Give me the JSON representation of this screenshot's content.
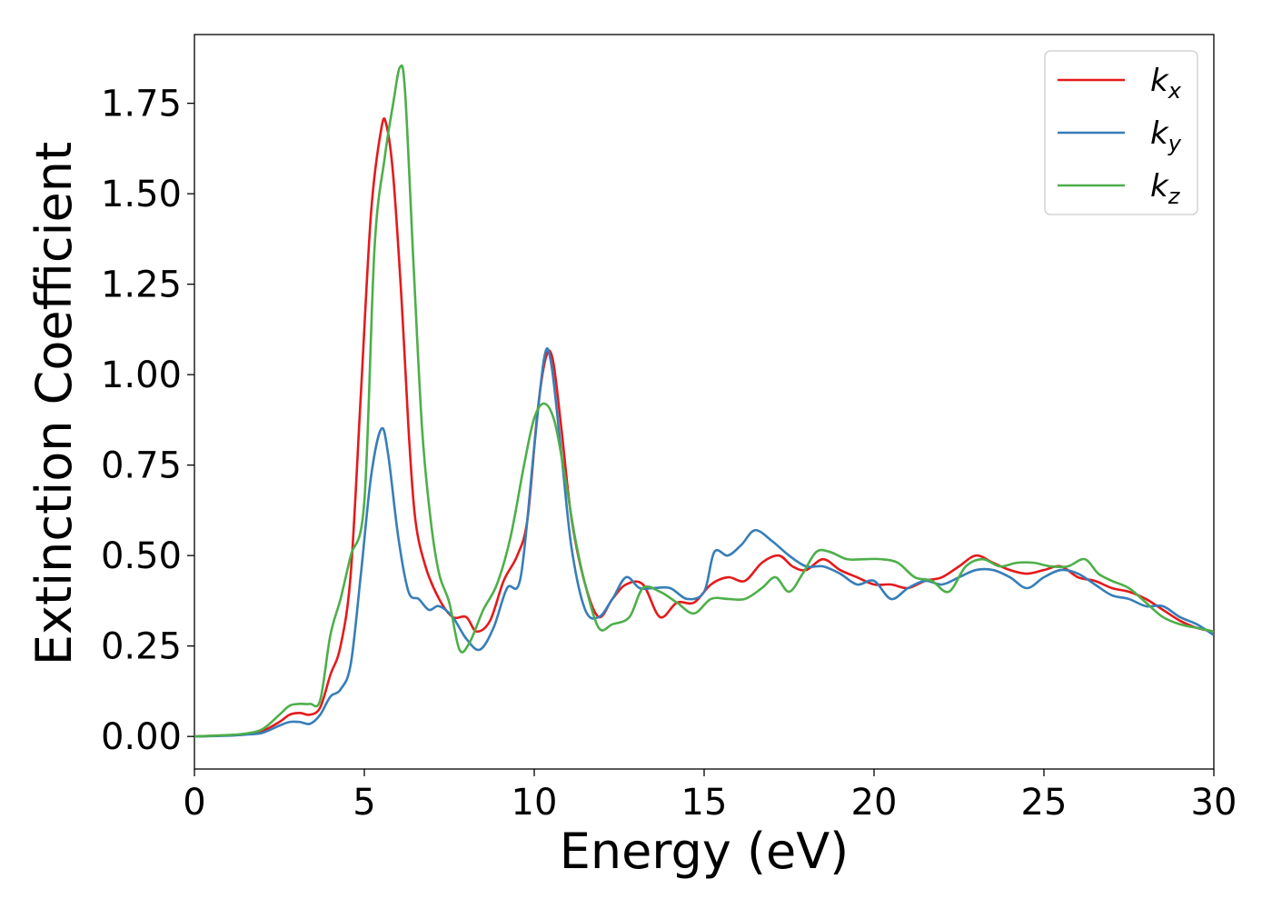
{
  "chart_data": {
    "type": "line",
    "xlabel": "Energy (eV)",
    "ylabel": "Extinction Coefficient",
    "xlim": [
      0,
      30
    ],
    "ylim": [
      -0.09,
      1.94
    ],
    "xticks": [
      0,
      5,
      10,
      15,
      20,
      25,
      30
    ],
    "xtick_labels": [
      "0",
      "5",
      "10",
      "15",
      "20",
      "25",
      "30"
    ],
    "yticks": [
      0.0,
      0.25,
      0.5,
      0.75,
      1.0,
      1.25,
      1.5,
      1.75
    ],
    "ytick_labels": [
      "0.00",
      "0.25",
      "0.50",
      "0.75",
      "1.00",
      "1.25",
      "1.50",
      "1.75"
    ],
    "grid": false,
    "legend_position": "top-right",
    "series": [
      {
        "name": "k_x",
        "label_base": "k",
        "label_sub": "x",
        "color": "#e41a1c",
        "points": [
          [
            0,
            0
          ],
          [
            1,
            0.003
          ],
          [
            1.5,
            0.006
          ],
          [
            2,
            0.015
          ],
          [
            2.5,
            0.04
          ],
          [
            2.8,
            0.06
          ],
          [
            3.1,
            0.065
          ],
          [
            3.4,
            0.06
          ],
          [
            3.7,
            0.08
          ],
          [
            4,
            0.17
          ],
          [
            4.3,
            0.25
          ],
          [
            4.6,
            0.45
          ],
          [
            4.9,
            0.95
          ],
          [
            5.2,
            1.45
          ],
          [
            5.5,
            1.68
          ],
          [
            5.65,
            1.69
          ],
          [
            5.85,
            1.55
          ],
          [
            6.1,
            1.2
          ],
          [
            6.3,
            0.85
          ],
          [
            6.5,
            0.6
          ],
          [
            6.8,
            0.47
          ],
          [
            7.2,
            0.38
          ],
          [
            7.6,
            0.33
          ],
          [
            8,
            0.33
          ],
          [
            8.3,
            0.29
          ],
          [
            8.7,
            0.32
          ],
          [
            9.1,
            0.43
          ],
          [
            9.5,
            0.5
          ],
          [
            9.8,
            0.6
          ],
          [
            10.1,
            0.9
          ],
          [
            10.35,
            1.05
          ],
          [
            10.55,
            1.04
          ],
          [
            10.8,
            0.85
          ],
          [
            11.1,
            0.6
          ],
          [
            11.5,
            0.42
          ],
          [
            11.9,
            0.33
          ],
          [
            12.3,
            0.38
          ],
          [
            12.7,
            0.42
          ],
          [
            13.2,
            0.42
          ],
          [
            13.7,
            0.33
          ],
          [
            14.2,
            0.37
          ],
          [
            14.7,
            0.37
          ],
          [
            15.2,
            0.42
          ],
          [
            15.7,
            0.44
          ],
          [
            16.2,
            0.43
          ],
          [
            16.7,
            0.48
          ],
          [
            17.2,
            0.5
          ],
          [
            17.6,
            0.47
          ],
          [
            18,
            0.46
          ],
          [
            18.5,
            0.49
          ],
          [
            19,
            0.46
          ],
          [
            19.5,
            0.44
          ],
          [
            20,
            0.42
          ],
          [
            20.5,
            0.42
          ],
          [
            21,
            0.41
          ],
          [
            21.5,
            0.43
          ],
          [
            22,
            0.44
          ],
          [
            22.5,
            0.47
          ],
          [
            23,
            0.5
          ],
          [
            23.5,
            0.48
          ],
          [
            24,
            0.46
          ],
          [
            24.5,
            0.45
          ],
          [
            25,
            0.46
          ],
          [
            25.5,
            0.47
          ],
          [
            26,
            0.44
          ],
          [
            26.5,
            0.43
          ],
          [
            27,
            0.41
          ],
          [
            27.5,
            0.4
          ],
          [
            28,
            0.38
          ],
          [
            28.5,
            0.35
          ],
          [
            29,
            0.32
          ],
          [
            29.5,
            0.3
          ],
          [
            30,
            0.29
          ]
        ]
      },
      {
        "name": "k_y",
        "label_base": "k",
        "label_sub": "y",
        "color": "#377eb8",
        "points": [
          [
            0,
            0
          ],
          [
            1,
            0.002
          ],
          [
            1.5,
            0.005
          ],
          [
            2,
            0.01
          ],
          [
            2.5,
            0.03
          ],
          [
            2.8,
            0.04
          ],
          [
            3.1,
            0.04
          ],
          [
            3.4,
            0.035
          ],
          [
            3.7,
            0.06
          ],
          [
            4,
            0.11
          ],
          [
            4.3,
            0.13
          ],
          [
            4.6,
            0.2
          ],
          [
            4.9,
            0.45
          ],
          [
            5.2,
            0.72
          ],
          [
            5.5,
            0.85
          ],
          [
            5.7,
            0.78
          ],
          [
            6,
            0.55
          ],
          [
            6.3,
            0.4
          ],
          [
            6.6,
            0.38
          ],
          [
            6.9,
            0.35
          ],
          [
            7.2,
            0.36
          ],
          [
            7.6,
            0.33
          ],
          [
            8,
            0.27
          ],
          [
            8.4,
            0.24
          ],
          [
            8.8,
            0.3
          ],
          [
            9.2,
            0.41
          ],
          [
            9.6,
            0.44
          ],
          [
            10,
            0.8
          ],
          [
            10.3,
            1.05
          ],
          [
            10.5,
            1.03
          ],
          [
            10.8,
            0.78
          ],
          [
            11.1,
            0.52
          ],
          [
            11.5,
            0.35
          ],
          [
            11.9,
            0.33
          ],
          [
            12.3,
            0.38
          ],
          [
            12.7,
            0.44
          ],
          [
            13.1,
            0.41
          ],
          [
            13.5,
            0.41
          ],
          [
            14,
            0.41
          ],
          [
            14.5,
            0.38
          ],
          [
            15,
            0.4
          ],
          [
            15.3,
            0.51
          ],
          [
            15.7,
            0.5
          ],
          [
            16.1,
            0.53
          ],
          [
            16.5,
            0.57
          ],
          [
            17,
            0.54
          ],
          [
            17.5,
            0.5
          ],
          [
            18,
            0.47
          ],
          [
            18.5,
            0.47
          ],
          [
            19,
            0.45
          ],
          [
            19.5,
            0.42
          ],
          [
            20,
            0.43
          ],
          [
            20.5,
            0.38
          ],
          [
            21,
            0.41
          ],
          [
            21.5,
            0.43
          ],
          [
            22,
            0.42
          ],
          [
            22.5,
            0.44
          ],
          [
            23,
            0.46
          ],
          [
            23.5,
            0.46
          ],
          [
            24,
            0.44
          ],
          [
            24.5,
            0.41
          ],
          [
            25,
            0.44
          ],
          [
            25.5,
            0.46
          ],
          [
            26,
            0.45
          ],
          [
            26.5,
            0.42
          ],
          [
            27,
            0.39
          ],
          [
            27.5,
            0.38
          ],
          [
            28,
            0.36
          ],
          [
            28.5,
            0.36
          ],
          [
            29,
            0.33
          ],
          [
            29.5,
            0.31
          ],
          [
            30,
            0.28
          ]
        ]
      },
      {
        "name": "k_z",
        "label_base": "k",
        "label_sub": "z",
        "color": "#4daf4a",
        "points": [
          [
            0,
            0
          ],
          [
            1,
            0.004
          ],
          [
            1.5,
            0.008
          ],
          [
            2,
            0.02
          ],
          [
            2.5,
            0.06
          ],
          [
            2.8,
            0.085
          ],
          [
            3.1,
            0.09
          ],
          [
            3.4,
            0.09
          ],
          [
            3.7,
            0.1
          ],
          [
            4,
            0.28
          ],
          [
            4.3,
            0.38
          ],
          [
            4.6,
            0.5
          ],
          [
            5,
            0.65
          ],
          [
            5.3,
            1.35
          ],
          [
            5.6,
            1.6
          ],
          [
            5.85,
            1.75
          ],
          [
            6.05,
            1.85
          ],
          [
            6.2,
            1.78
          ],
          [
            6.45,
            1.3
          ],
          [
            6.7,
            0.85
          ],
          [
            6.95,
            0.6
          ],
          [
            7.2,
            0.45
          ],
          [
            7.5,
            0.37
          ],
          [
            7.8,
            0.24
          ],
          [
            8.1,
            0.26
          ],
          [
            8.5,
            0.35
          ],
          [
            8.9,
            0.42
          ],
          [
            9.3,
            0.55
          ],
          [
            9.7,
            0.75
          ],
          [
            10,
            0.88
          ],
          [
            10.3,
            0.92
          ],
          [
            10.6,
            0.87
          ],
          [
            10.9,
            0.72
          ],
          [
            11.2,
            0.55
          ],
          [
            11.5,
            0.42
          ],
          [
            11.9,
            0.3
          ],
          [
            12.3,
            0.31
          ],
          [
            12.8,
            0.33
          ],
          [
            13.2,
            0.41
          ],
          [
            13.7,
            0.4
          ],
          [
            14.2,
            0.37
          ],
          [
            14.7,
            0.34
          ],
          [
            15.2,
            0.38
          ],
          [
            15.7,
            0.38
          ],
          [
            16.2,
            0.38
          ],
          [
            16.7,
            0.41
          ],
          [
            17.1,
            0.44
          ],
          [
            17.5,
            0.4
          ],
          [
            17.9,
            0.45
          ],
          [
            18.3,
            0.51
          ],
          [
            18.7,
            0.51
          ],
          [
            19.2,
            0.49
          ],
          [
            19.7,
            0.49
          ],
          [
            20.2,
            0.49
          ],
          [
            20.7,
            0.48
          ],
          [
            21.2,
            0.44
          ],
          [
            21.7,
            0.43
          ],
          [
            22.2,
            0.4
          ],
          [
            22.7,
            0.47
          ],
          [
            23.2,
            0.49
          ],
          [
            23.7,
            0.47
          ],
          [
            24.2,
            0.48
          ],
          [
            24.7,
            0.48
          ],
          [
            25.2,
            0.47
          ],
          [
            25.7,
            0.47
          ],
          [
            26.2,
            0.49
          ],
          [
            26.6,
            0.45
          ],
          [
            27,
            0.43
          ],
          [
            27.5,
            0.41
          ],
          [
            28,
            0.37
          ],
          [
            28.5,
            0.33
          ],
          [
            29,
            0.31
          ],
          [
            29.5,
            0.3
          ],
          [
            30,
            0.29
          ]
        ]
      }
    ]
  }
}
